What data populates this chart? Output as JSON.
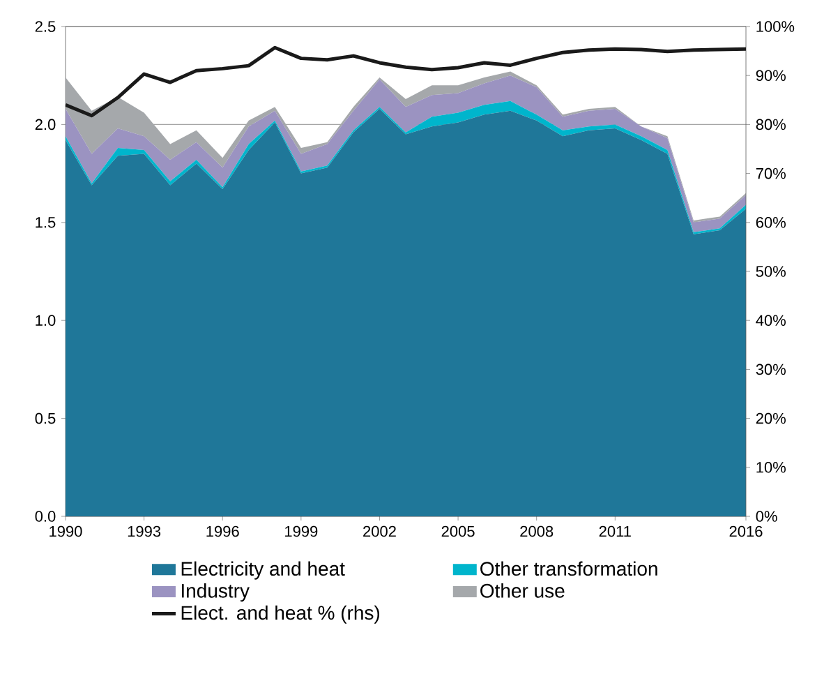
{
  "chart_data": {
    "type": "area",
    "stacked": true,
    "xlabel": null,
    "x": [
      1990,
      1991,
      1992,
      1993,
      1994,
      1995,
      1996,
      1997,
      1998,
      1999,
      2000,
      2001,
      2002,
      2003,
      2004,
      2005,
      2006,
      2007,
      2008,
      2009,
      2010,
      2011,
      2012,
      2013,
      2014,
      2015,
      2016
    ],
    "series": [
      {
        "name": "Electricity and heat",
        "color": "#1f7799",
        "values": [
          1.92,
          1.69,
          1.84,
          1.85,
          1.69,
          1.8,
          1.67,
          1.87,
          2.01,
          1.75,
          1.78,
          1.96,
          2.08,
          1.95,
          1.99,
          2.01,
          2.05,
          2.07,
          2.02,
          1.94,
          1.97,
          1.98,
          1.92,
          1.85,
          1.44,
          1.46,
          1.57
        ]
      },
      {
        "name": "Other transformation",
        "color": "#00b5cc",
        "values": [
          0.02,
          0.01,
          0.04,
          0.02,
          0.02,
          0.02,
          0.01,
          0.03,
          0.01,
          0.01,
          0.01,
          0.01,
          0.01,
          0.01,
          0.05,
          0.05,
          0.05,
          0.05,
          0.03,
          0.03,
          0.02,
          0.02,
          0.02,
          0.02,
          0.01,
          0.01,
          0.02
        ]
      },
      {
        "name": "Industry",
        "color": "#9b93c1",
        "values": [
          0.14,
          0.15,
          0.1,
          0.07,
          0.11,
          0.09,
          0.1,
          0.09,
          0.05,
          0.09,
          0.11,
          0.1,
          0.14,
          0.13,
          0.11,
          0.1,
          0.11,
          0.13,
          0.14,
          0.07,
          0.08,
          0.08,
          0.05,
          0.06,
          0.05,
          0.05,
          0.05
        ]
      },
      {
        "name": "Other use",
        "color": "#a5a8ab",
        "values": [
          0.16,
          0.22,
          0.16,
          0.12,
          0.08,
          0.06,
          0.05,
          0.03,
          0.02,
          0.03,
          0.01,
          0.02,
          0.01,
          0.04,
          0.05,
          0.04,
          0.03,
          0.02,
          0.01,
          0.01,
          0.01,
          0.01,
          0.0,
          0.01,
          0.01,
          0.01,
          0.01
        ]
      },
      {
        "name": "Elect. and heat % (rhs)",
        "type": "line",
        "axis": "y2",
        "color": "#1a1a1a",
        "values": [
          84.0,
          81.8,
          85.5,
          90.3,
          88.6,
          91.0,
          91.4,
          92.0,
          95.7,
          93.5,
          93.2,
          94.0,
          92.6,
          91.7,
          91.2,
          91.6,
          92.6,
          92.1,
          93.5,
          94.7,
          95.2,
          95.4,
          95.3,
          94.9,
          95.2,
          95.3,
          95.4
        ]
      }
    ],
    "xlim": [
      1990,
      2016
    ],
    "xticks": [
      1990,
      1993,
      1996,
      1999,
      2002,
      2005,
      2008,
      2011,
      2016
    ],
    "ylim": [
      0,
      2.5
    ],
    "yticks": [
      {
        "value": 0,
        "label": "0.0"
      },
      0.5,
      {
        "value": 1,
        "label": "1.0"
      },
      1.5,
      {
        "value": 2,
        "label": "2.0"
      },
      2.5
    ],
    "y2lim": [
      0,
      100
    ],
    "y2ticks": [
      {
        "value": 0,
        "label": "0%"
      },
      {
        "value": 10,
        "label": "10%"
      },
      {
        "value": 20,
        "label": "20%"
      },
      {
        "value": 30,
        "label": "30%"
      },
      {
        "value": 40,
        "label": "40%"
      },
      {
        "value": 50,
        "label": "50%"
      },
      {
        "value": 60,
        "label": "60%"
      },
      {
        "value": 70,
        "label": "70%"
      },
      {
        "value": 80,
        "label": "80%"
      },
      {
        "value": 90,
        "label": "90%"
      },
      {
        "value": 100,
        "label": "100%"
      }
    ],
    "grid": "y",
    "legend": "bottom"
  }
}
